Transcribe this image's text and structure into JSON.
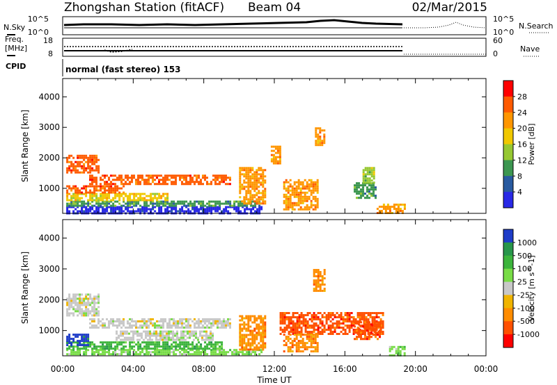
{
  "header": {
    "station": "Zhongshan Station (fitACF)",
    "beam": "Beam 04",
    "date": "02/Mar/2015"
  },
  "noise_panel": {
    "left_label": "N.Sky",
    "right_label": "N.Search",
    "left_ticks": [
      "10^5",
      "10^0"
    ],
    "right_ticks": [
      "10^5",
      "10^0"
    ]
  },
  "freq_panel": {
    "left_label_top": "Freq.",
    "left_label_bottom": "[MHz]",
    "right_label": "Nave",
    "left_ticks": [
      "18",
      "8"
    ],
    "right_ticks": [
      "60",
      "0"
    ]
  },
  "cpid": {
    "label": "CPID",
    "program": "normal (fast stereo) 153"
  },
  "axes": {
    "ylabel": "Slant Range [km]",
    "xlabel": "Time UT",
    "yticks": [
      "4000",
      "3000",
      "2000",
      "1000"
    ],
    "xticks": [
      "00:00",
      "04:00",
      "08:00",
      "12:00",
      "16:00",
      "20:00",
      "00:00"
    ]
  },
  "chart_data": [
    {
      "type": "heatmap",
      "parameter": "power",
      "colorbar_label": "Power [dB]",
      "colorbar_ticks": [
        "28",
        "24",
        "20",
        "16",
        "12",
        "8",
        "4"
      ],
      "colorbar_colors": [
        "#ff0000",
        "#ff5a00",
        "#ff9600",
        "#f0c800",
        "#96c832",
        "#3c9650",
        "#285aa0",
        "#2828e6"
      ],
      "x_range_hours": [
        0,
        24
      ],
      "y_range_km": [
        180,
        4600
      ],
      "patches": [
        {
          "t0": 0.2,
          "t1": 11.3,
          "r0": 200,
          "r1": 420,
          "level": 7
        },
        {
          "t0": 0.2,
          "t1": 11.3,
          "r0": 420,
          "r1": 600,
          "level": 5
        },
        {
          "t0": 0.2,
          "t1": 6.0,
          "r0": 600,
          "r1": 850,
          "level": 3
        },
        {
          "t0": 0.2,
          "t1": 3.5,
          "r0": 850,
          "r1": 1100,
          "level": 1
        },
        {
          "t0": 0.2,
          "t1": 2.0,
          "r0": 1500,
          "r1": 2100,
          "level": 1
        },
        {
          "t0": 1.5,
          "t1": 9.5,
          "r0": 1150,
          "r1": 1450,
          "level": 1
        },
        {
          "t0": 10.0,
          "t1": 11.5,
          "r0": 500,
          "r1": 1700,
          "level": 2
        },
        {
          "t0": 12.5,
          "t1": 14.5,
          "r0": 300,
          "r1": 1300,
          "level": 2
        },
        {
          "t0": 16.5,
          "t1": 17.8,
          "r0": 700,
          "r1": 1200,
          "level": 5
        },
        {
          "t0": 17.0,
          "t1": 17.6,
          "r0": 1200,
          "r1": 1700,
          "level": 4
        },
        {
          "t0": 14.3,
          "t1": 14.8,
          "r0": 2400,
          "r1": 3000,
          "level": 2
        },
        {
          "t0": 17.8,
          "t1": 19.4,
          "r0": 200,
          "r1": 500,
          "level": 2
        },
        {
          "t0": 11.8,
          "t1": 12.3,
          "r0": 1800,
          "r1": 2400,
          "level": 2
        }
      ]
    },
    {
      "type": "heatmap",
      "parameter": "velocity",
      "colorbar_label": "Velocity [m s^-1]",
      "colorbar_ticks": [
        "1000",
        "500",
        "100",
        "25",
        "-25",
        "-100",
        "-500",
        "-1000"
      ],
      "colorbar_colors": [
        "#1e3cc8",
        "#28964b",
        "#3cb43c",
        "#78dc46",
        "#c8c8c8",
        "#f0b400",
        "#ff8c00",
        "#ff5000",
        "#ff0000"
      ],
      "x_range_hours": [
        0,
        24
      ],
      "y_range_km": [
        180,
        4600
      ],
      "patches": [
        {
          "t0": 0.2,
          "t1": 11.3,
          "r0": 200,
          "r1": 400,
          "level": 3
        },
        {
          "t0": 0.2,
          "t1": 9.0,
          "r0": 400,
          "r1": 650,
          "level": 2
        },
        {
          "t0": 0.2,
          "t1": 1.5,
          "r0": 500,
          "r1": 900,
          "level": 0
        },
        {
          "t0": 0.2,
          "t1": 2.0,
          "r0": 1500,
          "r1": 2200,
          "level": 4
        },
        {
          "t0": 1.5,
          "t1": 9.5,
          "r0": 1100,
          "r1": 1400,
          "level": 4
        },
        {
          "t0": 3.0,
          "t1": 8.5,
          "r0": 700,
          "r1": 1000,
          "level": 4
        },
        {
          "t0": 10.0,
          "t1": 11.5,
          "r0": 400,
          "r1": 1500,
          "level": 6
        },
        {
          "t0": 12.3,
          "t1": 18.2,
          "r0": 900,
          "r1": 1600,
          "level": 7
        },
        {
          "t0": 12.5,
          "t1": 14.5,
          "r0": 300,
          "r1": 900,
          "level": 6
        },
        {
          "t0": 14.2,
          "t1": 14.9,
          "r0": 2300,
          "r1": 3000,
          "level": 6
        },
        {
          "t0": 16.5,
          "t1": 18.0,
          "r0": 700,
          "r1": 1300,
          "level": 7
        },
        {
          "t0": 18.5,
          "t1": 19.4,
          "r0": 200,
          "r1": 500,
          "level": 3
        }
      ]
    }
  ]
}
